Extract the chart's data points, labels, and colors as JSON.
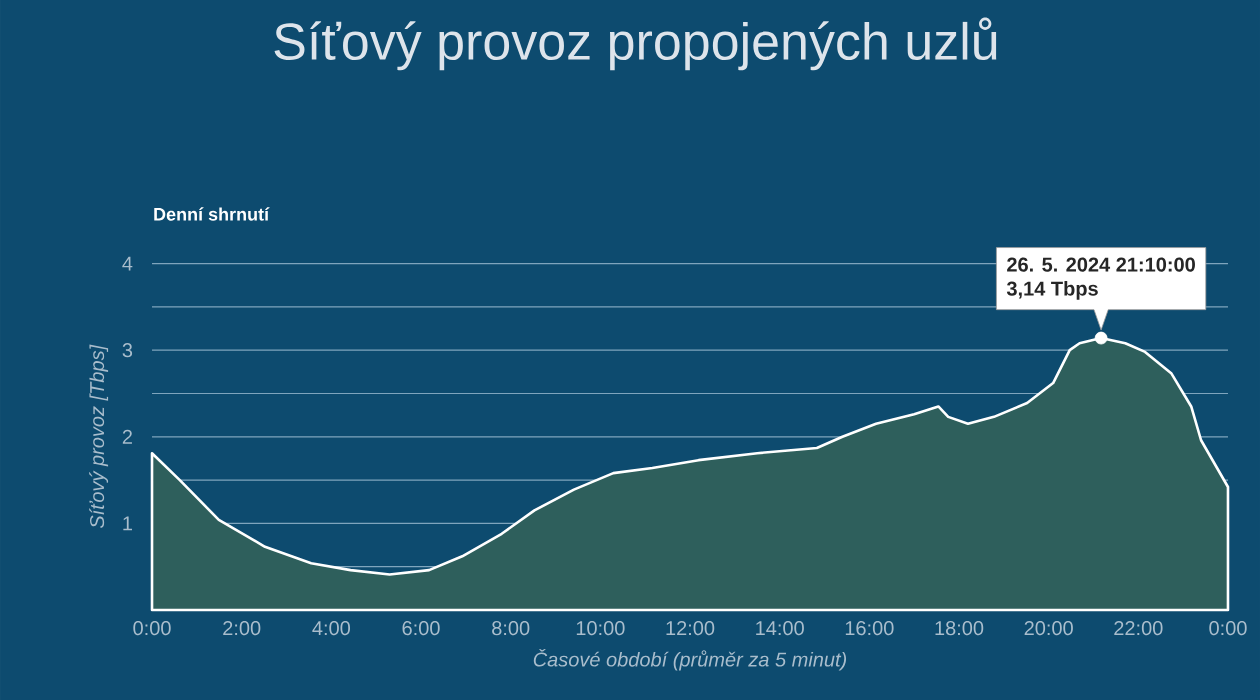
{
  "chart_data": {
    "type": "area",
    "title": "Síťový provoz propojených uzlů",
    "subtitle": "Denní shrnutí",
    "xlabel": "Časové období (průměr za 5 minut)",
    "ylabel": "Síťový provoz [Tbps]",
    "series": [
      {
        "color": "#ffffff",
        "marker": "none",
        "x": [
          0,
          0.62,
          1.49,
          2.52,
          3.55,
          4.43,
          5.3,
          6.18,
          6.92,
          7.8,
          8.53,
          9.41,
          10.29,
          11.16,
          12.19,
          13.5,
          14.83,
          15.4,
          16.15,
          17.0,
          17.54,
          17.76,
          18.2,
          18.78,
          19.52,
          20.1,
          20.47,
          20.69,
          21.17,
          21.71,
          22.15,
          22.74,
          23.18,
          23.4,
          24
        ],
        "values": [
          1.81,
          1.5,
          1.04,
          0.73,
          0.54,
          0.46,
          0.41,
          0.46,
          0.62,
          0.88,
          1.15,
          1.39,
          1.58,
          1.64,
          1.73,
          1.81,
          1.87,
          2.0,
          2.15,
          2.26,
          2.35,
          2.23,
          2.15,
          2.23,
          2.39,
          2.62,
          3.0,
          3.08,
          3.14,
          3.08,
          2.98,
          2.73,
          2.35,
          1.96,
          1.42
        ]
      },
      {
        "type": "scatter",
        "color": "#ffffff",
        "marker": "circle",
        "x": [
          21.17
        ],
        "values": [
          3.14
        ]
      }
    ],
    "xlim": [
      0,
      24
    ],
    "ylim": [
      0,
      4
    ],
    "xticks": [
      {
        "value": 0,
        "label": "0:00"
      },
      {
        "value": 2,
        "label": "2:00"
      },
      {
        "value": 4,
        "label": "4:00"
      },
      {
        "value": 6,
        "label": "6:00"
      },
      {
        "value": 8,
        "label": "8:00"
      },
      {
        "value": 10,
        "label": "10:00"
      },
      {
        "value": 12,
        "label": "12:00"
      },
      {
        "value": 14,
        "label": "14:00"
      },
      {
        "value": 16,
        "label": "16:00"
      },
      {
        "value": 18,
        "label": "18:00"
      },
      {
        "value": 20,
        "label": "20:00"
      },
      {
        "value": 22,
        "label": "22:00"
      },
      {
        "value": 24,
        "label": "0:00"
      }
    ],
    "yticks": [
      {
        "value": 0.5,
        "label": null
      },
      1,
      {
        "value": 1.5,
        "label": null
      },
      2,
      {
        "value": 2.5,
        "label": null
      },
      3,
      {
        "value": 3.5,
        "label": null
      },
      4
    ],
    "grid": "y",
    "line_style": "solid",
    "annotations": [
      "26. 5. 2024 21:10:00",
      "3,14 Tbps"
    ]
  }
}
